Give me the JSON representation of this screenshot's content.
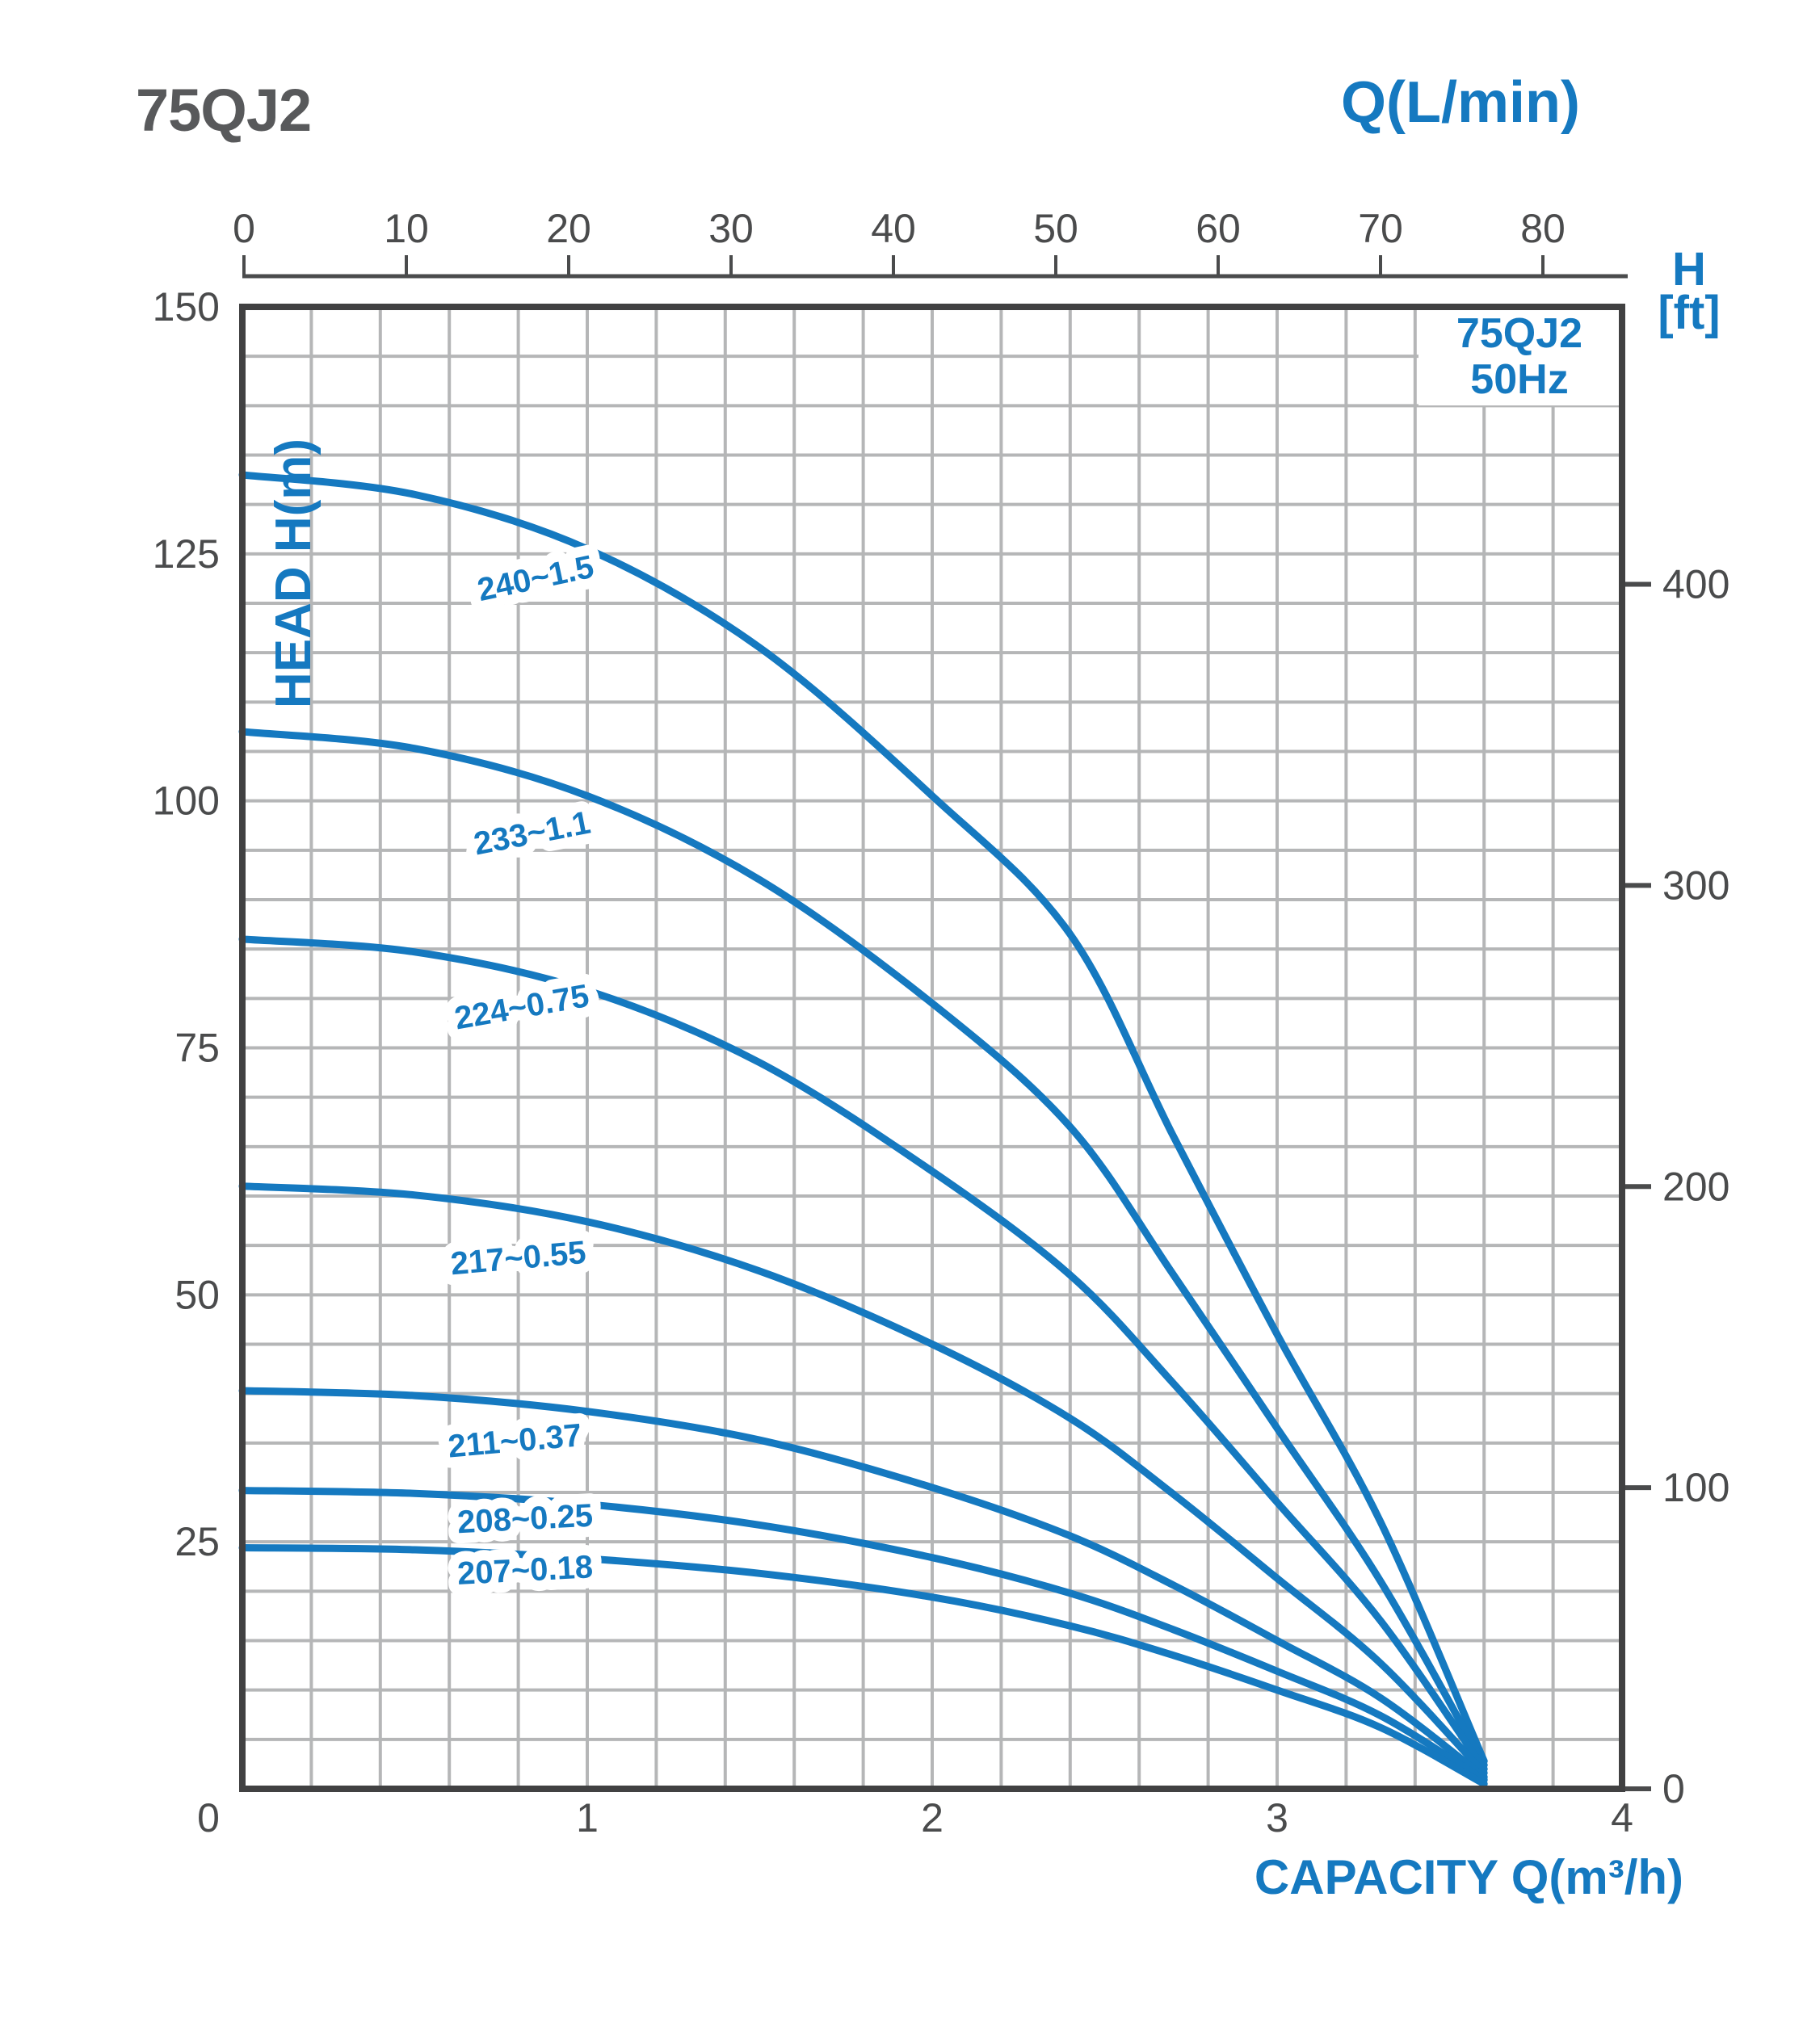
{
  "header": {
    "title": "75QJ2"
  },
  "legend": {
    "line1": "75QJ2",
    "line2": "50Hz"
  },
  "axes": {
    "top": {
      "title": "Q(L/min)",
      "ticks": [
        0,
        10,
        20,
        30,
        40,
        50,
        60,
        70,
        80
      ]
    },
    "left": {
      "title": "HEAD H(m)",
      "ticks": [
        150,
        125,
        100,
        75,
        50,
        25
      ]
    },
    "right": {
      "title_line1": "H",
      "title_line2": "[ft]",
      "ticks": [
        400,
        300,
        200,
        100,
        0
      ]
    },
    "bottom": {
      "title": "CAPACITY Q(m³/h)",
      "ticks": [
        0,
        1,
        2,
        3,
        4
      ]
    }
  },
  "colors": {
    "curve_blue": "#1579c0",
    "axis_text": "#4a4b4c",
    "grid": "#b5b6b7",
    "border": "#414142",
    "title_gray": "#58595b"
  },
  "chart_data": {
    "type": "line",
    "title": "75QJ2 50Hz submersible pump performance curves",
    "xlabel": "CAPACITY Q(m³/h)",
    "ylabel": "HEAD H(m)",
    "x2label": "Q(L/min)",
    "y2label": "H [ft]",
    "xlim": [
      0,
      4
    ],
    "ylim": [
      0,
      150
    ],
    "x2lim": [
      0,
      80
    ],
    "y2ticks_ft": [
      400,
      300,
      200,
      100,
      0
    ],
    "grid": true,
    "grid_step_x": 0.2,
    "grid_step_y": 5,
    "series": [
      {
        "name": "240~1.5",
        "points": [
          [
            0,
            133
          ],
          [
            0.5,
            131
          ],
          [
            1.0,
            125.5
          ],
          [
            1.5,
            115.5
          ],
          [
            2.0,
            100.5
          ],
          [
            2.4,
            86.5
          ],
          [
            2.7,
            66
          ],
          [
            3.0,
            46
          ],
          [
            3.3,
            27
          ],
          [
            3.6,
            2.8
          ]
        ],
        "label": {
          "q": 0.85,
          "h": 122.5,
          "rot": -12
        }
      },
      {
        "name": "233~1.1",
        "points": [
          [
            0,
            107
          ],
          [
            0.5,
            105.3
          ],
          [
            1.0,
            100.5
          ],
          [
            1.5,
            92
          ],
          [
            2.0,
            79.5
          ],
          [
            2.4,
            67
          ],
          [
            2.7,
            52
          ],
          [
            3.0,
            36.5
          ],
          [
            3.3,
            21
          ],
          [
            3.6,
            2.4
          ]
        ],
        "label": {
          "q": 0.84,
          "h": 96.7,
          "rot": -11
        }
      },
      {
        "name": "224~0.75",
        "points": [
          [
            0,
            86
          ],
          [
            0.5,
            84.7
          ],
          [
            1.0,
            80.8
          ],
          [
            1.5,
            73.5
          ],
          [
            2.0,
            62.5
          ],
          [
            2.4,
            52
          ],
          [
            2.7,
            41
          ],
          [
            3.0,
            29
          ],
          [
            3.3,
            17
          ],
          [
            3.6,
            2.0
          ]
        ],
        "label": {
          "q": 0.81,
          "h": 79.1,
          "rot": -10
        }
      },
      {
        "name": "217~0.55",
        "points": [
          [
            0,
            61
          ],
          [
            0.5,
            60.1
          ],
          [
            1.0,
            57.4
          ],
          [
            1.5,
            52.4
          ],
          [
            2.0,
            45
          ],
          [
            2.4,
            37.5
          ],
          [
            2.7,
            29.8
          ],
          [
            3.0,
            21.3
          ],
          [
            3.3,
            12.7
          ],
          [
            3.6,
            1.6
          ]
        ],
        "label": {
          "q": 0.8,
          "h": 53.7,
          "rot": -5
        }
      },
      {
        "name": "211~0.37",
        "points": [
          [
            0,
            40.3
          ],
          [
            0.5,
            39.8
          ],
          [
            1.0,
            38.2
          ],
          [
            1.5,
            35.3
          ],
          [
            2.0,
            30.5
          ],
          [
            2.4,
            25.6
          ],
          [
            2.7,
            20.6
          ],
          [
            3.0,
            15
          ],
          [
            3.3,
            9.2
          ],
          [
            3.6,
            1.2
          ]
        ],
        "label": {
          "q": 0.79,
          "h": 35.2,
          "rot": -5
        }
      },
      {
        "name": "208~0.25",
        "points": [
          [
            0,
            30.2
          ],
          [
            0.5,
            29.9
          ],
          [
            1.0,
            28.8
          ],
          [
            1.5,
            26.7
          ],
          [
            2.0,
            23.4
          ],
          [
            2.4,
            19.8
          ],
          [
            2.7,
            16.1
          ],
          [
            3.0,
            11.9
          ],
          [
            3.3,
            7.4
          ],
          [
            3.6,
            0.9
          ]
        ],
        "label": {
          "q": 0.82,
          "h": 27.3,
          "rot": -3
        }
      },
      {
        "name": "207~0.18",
        "points": [
          [
            0,
            24.4
          ],
          [
            0.5,
            24.2
          ],
          [
            1.0,
            23.3
          ],
          [
            1.5,
            21.8
          ],
          [
            2.0,
            19.4
          ],
          [
            2.4,
            16.5
          ],
          [
            2.7,
            13.5
          ],
          [
            3.0,
            10
          ],
          [
            3.3,
            6.2
          ],
          [
            3.6,
            0.5
          ]
        ],
        "label": {
          "q": 0.82,
          "h": 22.1,
          "rot": -3
        }
      }
    ]
  }
}
